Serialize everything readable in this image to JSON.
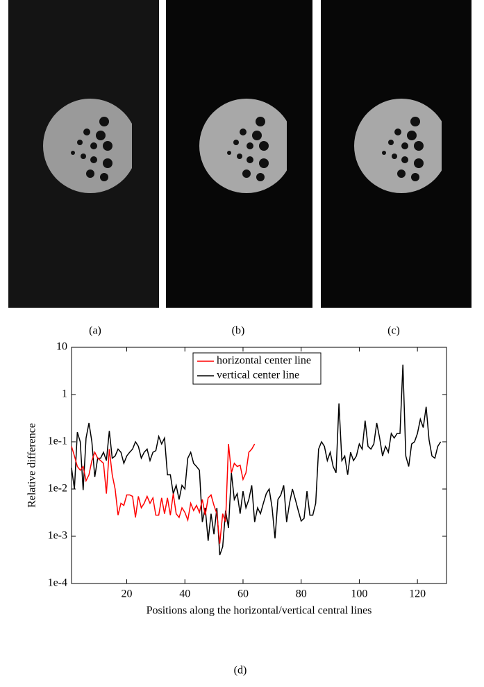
{
  "panels": [
    "(a)",
    "(b)",
    "(c)"
  ],
  "chart_data": {
    "type": "line",
    "caption": "(d)",
    "x_label": "Positions along the horizontal/vertical central lines",
    "y_label": "Relative difference",
    "log_y": true,
    "legend": "top",
    "xlim": [
      1,
      130
    ],
    "xticks": [
      20,
      40,
      60,
      80,
      100,
      120
    ],
    "ylim": [
      0.0001,
      10
    ],
    "yticks": [
      {
        "value": 0.0001,
        "label": "1e-4"
      },
      {
        "value": 0.001,
        "label": "1e-3"
      },
      {
        "value": 0.01,
        "label": "1e-2"
      },
      {
        "value": 0.1,
        "label": "1e-1"
      },
      1,
      10
    ],
    "series": [
      {
        "name": "horizontal center line",
        "color": "#ff0000",
        "x": [
          1,
          2,
          3,
          4,
          5,
          6,
          7,
          8,
          9,
          10,
          11,
          12,
          13,
          14,
          15,
          16,
          17,
          18,
          19,
          20,
          21,
          22,
          23,
          24,
          25,
          26,
          27,
          28,
          29,
          30,
          31,
          32,
          33,
          34,
          35,
          36,
          37,
          38,
          39,
          40,
          41,
          42,
          43,
          44,
          45,
          46,
          47,
          48,
          49,
          50,
          51,
          52,
          53,
          54,
          55,
          56,
          57,
          58,
          59,
          60,
          61,
          62,
          63,
          64
        ],
        "values": [
          0.08,
          0.05,
          0.03,
          0.025,
          0.03,
          0.015,
          0.02,
          0.04,
          0.06,
          0.045,
          0.04,
          0.035,
          0.008,
          0.07,
          0.02,
          0.01,
          0.0028,
          0.005,
          0.0045,
          0.0075,
          0.0075,
          0.007,
          0.0025,
          0.007,
          0.004,
          0.005,
          0.007,
          0.005,
          0.0065,
          0.0028,
          0.0028,
          0.0065,
          0.003,
          0.0065,
          0.0028,
          0.008,
          0.003,
          0.0025,
          0.004,
          0.0032,
          0.0022,
          0.005,
          0.0035,
          0.0045,
          0.0032,
          0.006,
          0.0028,
          0.0065,
          0.0075,
          0.0045,
          0.003,
          0.0007,
          0.003,
          0.002,
          0.09,
          0.022,
          0.035,
          0.03,
          0.032,
          0.016,
          0.022,
          0.06,
          0.07,
          0.09
        ]
      },
      {
        "name": "vertical center line",
        "color": "#000000",
        "x": [
          1,
          2,
          3,
          4,
          5,
          6,
          7,
          8,
          9,
          10,
          11,
          12,
          13,
          14,
          15,
          16,
          17,
          18,
          19,
          20,
          21,
          22,
          23,
          24,
          25,
          26,
          27,
          28,
          29,
          30,
          31,
          32,
          33,
          34,
          35,
          36,
          37,
          38,
          39,
          40,
          41,
          42,
          43,
          44,
          45,
          46,
          47,
          48,
          49,
          50,
          51,
          52,
          53,
          54,
          55,
          56,
          57,
          58,
          59,
          60,
          61,
          62,
          63,
          64,
          65,
          66,
          67,
          68,
          69,
          70,
          71,
          72,
          73,
          74,
          75,
          76,
          77,
          78,
          79,
          80,
          81,
          82,
          83,
          84,
          85,
          86,
          87,
          88,
          89,
          90,
          91,
          92,
          93,
          94,
          95,
          96,
          97,
          98,
          99,
          100,
          101,
          102,
          103,
          104,
          105,
          106,
          107,
          108,
          109,
          110,
          111,
          112,
          113,
          114,
          115,
          116,
          117,
          118,
          119,
          120,
          121,
          122,
          123,
          124,
          125,
          126,
          127,
          128
        ],
        "values": [
          0.028,
          0.01,
          0.16,
          0.1,
          0.0095,
          0.12,
          0.25,
          0.1,
          0.018,
          0.045,
          0.045,
          0.06,
          0.04,
          0.17,
          0.045,
          0.05,
          0.07,
          0.06,
          0.035,
          0.05,
          0.06,
          0.07,
          0.1,
          0.08,
          0.045,
          0.06,
          0.07,
          0.04,
          0.06,
          0.065,
          0.13,
          0.09,
          0.12,
          0.02,
          0.02,
          0.008,
          0.012,
          0.006,
          0.012,
          0.01,
          0.045,
          0.06,
          0.035,
          0.03,
          0.025,
          0.002,
          0.004,
          0.0008,
          0.003,
          0.0011,
          0.004,
          0.0004,
          0.0006,
          0.0035,
          0.0015,
          0.022,
          0.006,
          0.008,
          0.003,
          0.009,
          0.004,
          0.006,
          0.012,
          0.002,
          0.004,
          0.003,
          0.005,
          0.008,
          0.01,
          0.004,
          0.0009,
          0.006,
          0.0075,
          0.012,
          0.002,
          0.005,
          0.01,
          0.006,
          0.0035,
          0.0021,
          0.0024,
          0.009,
          0.0028,
          0.0028,
          0.005,
          0.07,
          0.1,
          0.08,
          0.04,
          0.06,
          0.03,
          0.022,
          0.65,
          0.04,
          0.05,
          0.02,
          0.06,
          0.04,
          0.05,
          0.09,
          0.07,
          0.28,
          0.08,
          0.07,
          0.09,
          0.25,
          0.12,
          0.05,
          0.08,
          0.06,
          0.15,
          0.12,
          0.15,
          0.15,
          4.3,
          0.05,
          0.03,
          0.09,
          0.1,
          0.15,
          0.3,
          0.2,
          0.55,
          0.11,
          0.05,
          0.045,
          0.08,
          0.1
        ]
      }
    ]
  }
}
